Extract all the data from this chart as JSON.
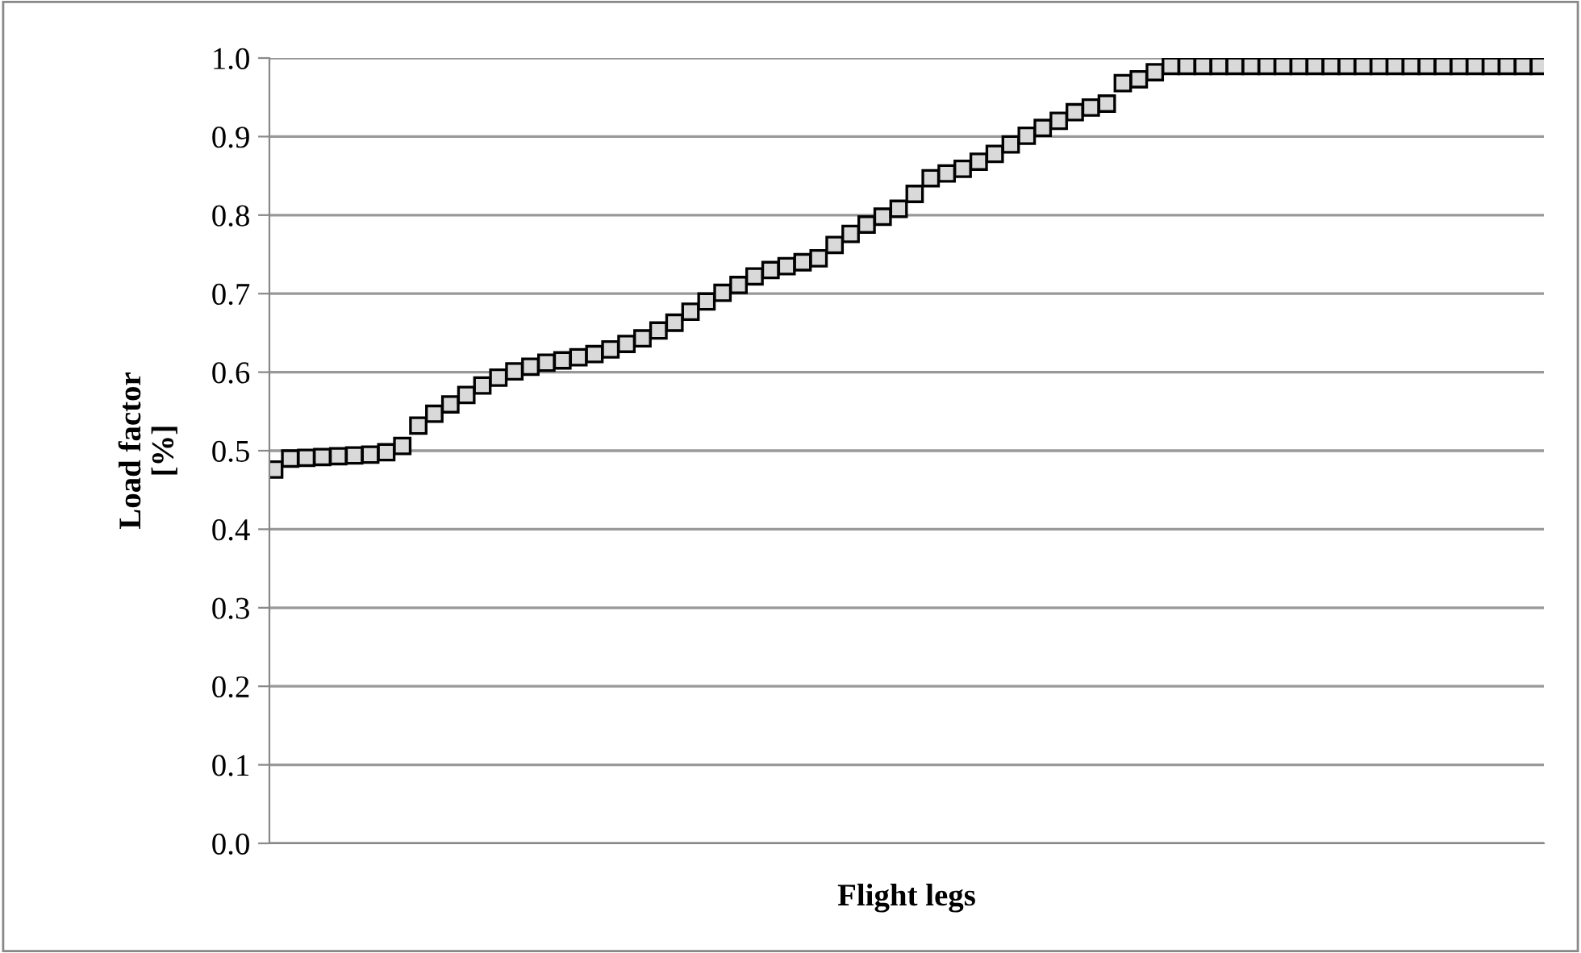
{
  "chart_data": {
    "type": "scatter",
    "xlabel": "Flight legs",
    "ylabel": "Load factor\n[%]",
    "categories": [
      null,
      null,
      null,
      null,
      null,
      null,
      null,
      null,
      null,
      null,
      null,
      null,
      null,
      null,
      null,
      null,
      null,
      null,
      null,
      null,
      null,
      null,
      null,
      null,
      null,
      null,
      null,
      null,
      null,
      null,
      null,
      null,
      null,
      null,
      null,
      null,
      null,
      null,
      null,
      null,
      null,
      null,
      null,
      null,
      null,
      null,
      null,
      null,
      null,
      null,
      null,
      null,
      null,
      null,
      null,
      null,
      null,
      null,
      null,
      null,
      null,
      null,
      null,
      null,
      null,
      null,
      null,
      null,
      null,
      null,
      null,
      null,
      null,
      null,
      null,
      null,
      null,
      null,
      null,
      null
    ],
    "series": [
      {
        "color": "#d9d9d9",
        "values": [
          0.476,
          0.49,
          0.491,
          0.492,
          0.493,
          0.494,
          0.495,
          0.498,
          0.506,
          0.532,
          0.547,
          0.559,
          0.571,
          0.583,
          0.593,
          0.601,
          0.607,
          0.612,
          0.615,
          0.619,
          0.623,
          0.629,
          0.636,
          0.643,
          0.653,
          0.663,
          0.677,
          0.69,
          0.701,
          0.711,
          0.722,
          0.73,
          0.735,
          0.74,
          0.745,
          0.762,
          0.776,
          0.788,
          0.798,
          0.808,
          0.827,
          0.847,
          0.853,
          0.859,
          0.868,
          0.878,
          0.89,
          0.901,
          0.911,
          0.92,
          0.931,
          0.937,
          0.942,
          0.968,
          0.973,
          0.982,
          0.99,
          0.99,
          0.99,
          0.99,
          0.99,
          0.99,
          0.99,
          0.99,
          0.99,
          0.99,
          0.99,
          0.99,
          0.99,
          0.99,
          0.99,
          0.99,
          0.99,
          0.99,
          0.99,
          0.99,
          0.99,
          0.99,
          0.99,
          0.99
        ]
      }
    ],
    "ylim": [
      0,
      1
    ],
    "yticks": [
      {
        "value": 0,
        "label": "0.0"
      },
      {
        "value": 0.1,
        "label": "0.1"
      },
      {
        "value": 0.2,
        "label": "0.2"
      },
      {
        "value": 0.3,
        "label": "0.3"
      },
      {
        "value": 0.4,
        "label": "0.4"
      },
      {
        "value": 0.5,
        "label": "0.5"
      },
      {
        "value": 0.6,
        "label": "0.6"
      },
      {
        "value": 0.7,
        "label": "0.7"
      },
      {
        "value": 0.8,
        "label": "0.8"
      },
      {
        "value": 0.9,
        "label": "0.9"
      },
      {
        "value": 1,
        "label": "1.0"
      }
    ],
    "grid": "y",
    "tick_labels": "y",
    "marker": "square"
  }
}
